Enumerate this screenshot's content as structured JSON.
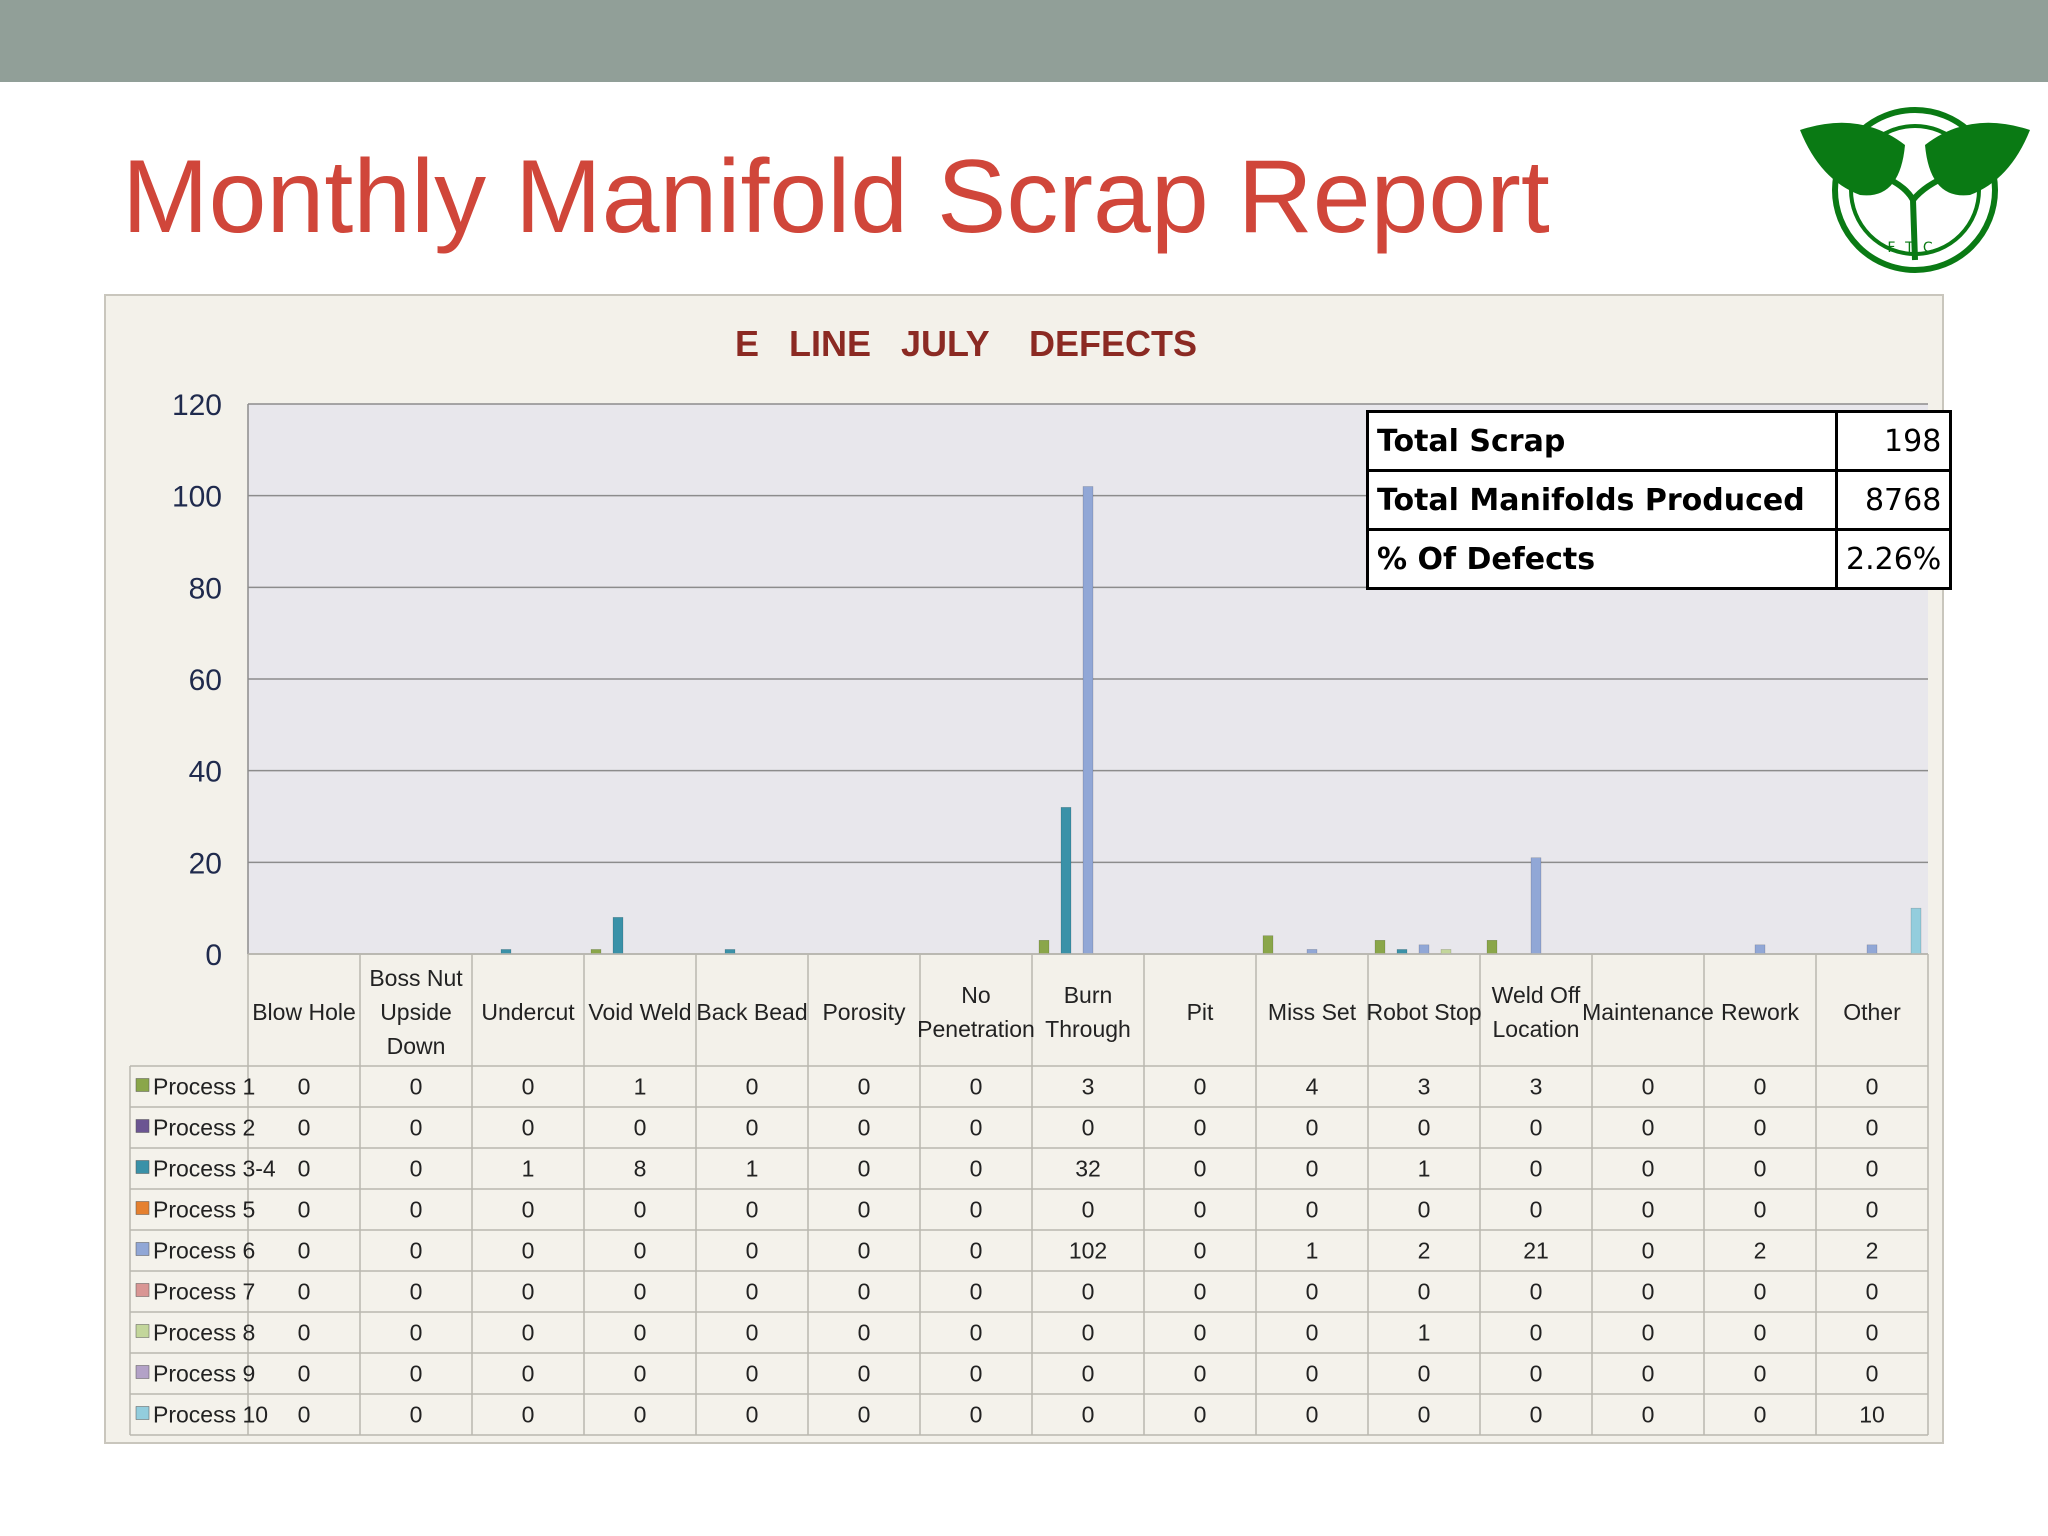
{
  "slide": {
    "title": "Monthly Manifold Scrap Report",
    "colors": {
      "top_bar": "#919f98",
      "title": "#d0463a",
      "logo_green": "#0a7a14"
    },
    "logo_icon": "leaf-logo-icon",
    "logo_text": "FTC"
  },
  "summary": {
    "rows": [
      {
        "label": "Total Scrap",
        "value": "198"
      },
      {
        "label": "Total Manifolds Produced",
        "value": "8768"
      },
      {
        "label": "% Of Defects",
        "value": "2.26%"
      }
    ]
  },
  "chart_data": {
    "type": "bar",
    "title": "E   LINE   JULY    DEFECTS",
    "ylim": [
      0,
      120
    ],
    "yticks": [
      0,
      20,
      40,
      60,
      80,
      100,
      120
    ],
    "grid": true,
    "legend": "data-table",
    "categories": [
      "Blow Hole",
      "Boss Nut Upside Down",
      "Undercut",
      "Void Weld",
      "Back Bead",
      "Porosity",
      "No Penetration",
      "Burn Through",
      "Pit",
      "Miss Set",
      "Robot Stop",
      "Weld Off Location",
      "Maintenance",
      "Rework",
      "Other"
    ],
    "category_lines": [
      [
        "Blow Hole"
      ],
      [
        "Boss Nut",
        "Upside",
        "Down"
      ],
      [
        "Undercut"
      ],
      [
        "Void Weld"
      ],
      [
        "Back Bead"
      ],
      [
        "Porosity"
      ],
      [
        "No",
        "Penetration"
      ],
      [
        "Burn",
        "Through"
      ],
      [
        "Pit"
      ],
      [
        "Miss Set"
      ],
      [
        "Robot Stop"
      ],
      [
        "Weld Off",
        "Location"
      ],
      [
        "Maintenance"
      ],
      [
        "Rework"
      ],
      [
        "Other"
      ]
    ],
    "series": [
      {
        "name": "Process 1",
        "color": "#8aa64a",
        "values": [
          0,
          0,
          0,
          1,
          0,
          0,
          0,
          3,
          0,
          4,
          3,
          3,
          0,
          0,
          0
        ]
      },
      {
        "name": "Process 2",
        "color": "#6b5592",
        "values": [
          0,
          0,
          0,
          0,
          0,
          0,
          0,
          0,
          0,
          0,
          0,
          0,
          0,
          0,
          0
        ]
      },
      {
        "name": "Process 3-4",
        "color": "#3a91a8",
        "values": [
          0,
          0,
          1,
          8,
          1,
          0,
          0,
          32,
          0,
          0,
          1,
          0,
          0,
          0,
          0
        ]
      },
      {
        "name": "Process 5",
        "color": "#e5802f",
        "values": [
          0,
          0,
          0,
          0,
          0,
          0,
          0,
          0,
          0,
          0,
          0,
          0,
          0,
          0,
          0
        ]
      },
      {
        "name": "Process 6",
        "color": "#91a7d6",
        "values": [
          0,
          0,
          0,
          0,
          0,
          0,
          0,
          102,
          0,
          1,
          2,
          21,
          0,
          2,
          2
        ]
      },
      {
        "name": "Process 7",
        "color": "#d99694",
        "values": [
          0,
          0,
          0,
          0,
          0,
          0,
          0,
          0,
          0,
          0,
          0,
          0,
          0,
          0,
          0
        ]
      },
      {
        "name": "Process 8",
        "color": "#c3d69b",
        "values": [
          0,
          0,
          0,
          0,
          0,
          0,
          0,
          0,
          0,
          0,
          1,
          0,
          0,
          0,
          0
        ]
      },
      {
        "name": "Process 9",
        "color": "#b3a2c7",
        "values": [
          0,
          0,
          0,
          0,
          0,
          0,
          0,
          0,
          0,
          0,
          0,
          0,
          0,
          0,
          0
        ]
      },
      {
        "name": "Process 10",
        "color": "#93cddd",
        "values": [
          0,
          0,
          0,
          0,
          0,
          0,
          0,
          0,
          0,
          0,
          0,
          0,
          0,
          0,
          10
        ]
      }
    ]
  }
}
